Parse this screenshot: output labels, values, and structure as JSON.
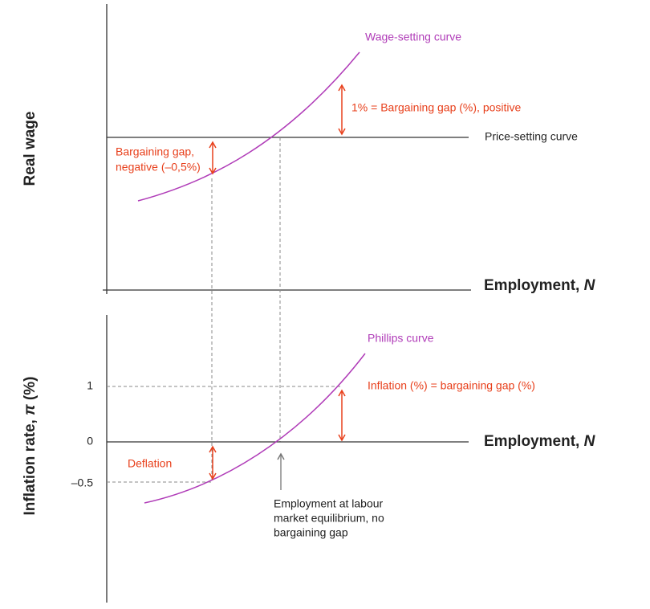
{
  "top_panel": {
    "y_axis_label": "Real wage",
    "x_axis_label": {
      "text": "Employment, ",
      "var": "N"
    },
    "wage_curve_label": "Wage-setting curve",
    "price_curve_label": "Price-setting curve",
    "positive_gap_label": "1% = Bargaining gap (%), positive",
    "negative_gap_label": [
      "Bargaining gap,",
      "negative (–0,5%)"
    ]
  },
  "bottom_panel": {
    "y_axis_label": {
      "text": "Inflation rate, ",
      "var": "π",
      "unit": " (%)"
    },
    "x_axis_label": {
      "text": "Employment, ",
      "var": "N"
    },
    "y_tick_labels": [
      "1",
      "0",
      "–0.5"
    ],
    "phillips_label": "Phillips curve",
    "inflation_label": "Inflation (%) = bargaining gap (%)",
    "deflation_label": "Deflation",
    "equilibrium_note": [
      "Employment at labour",
      "market equilibrium, no",
      "bargaining gap"
    ]
  }
}
